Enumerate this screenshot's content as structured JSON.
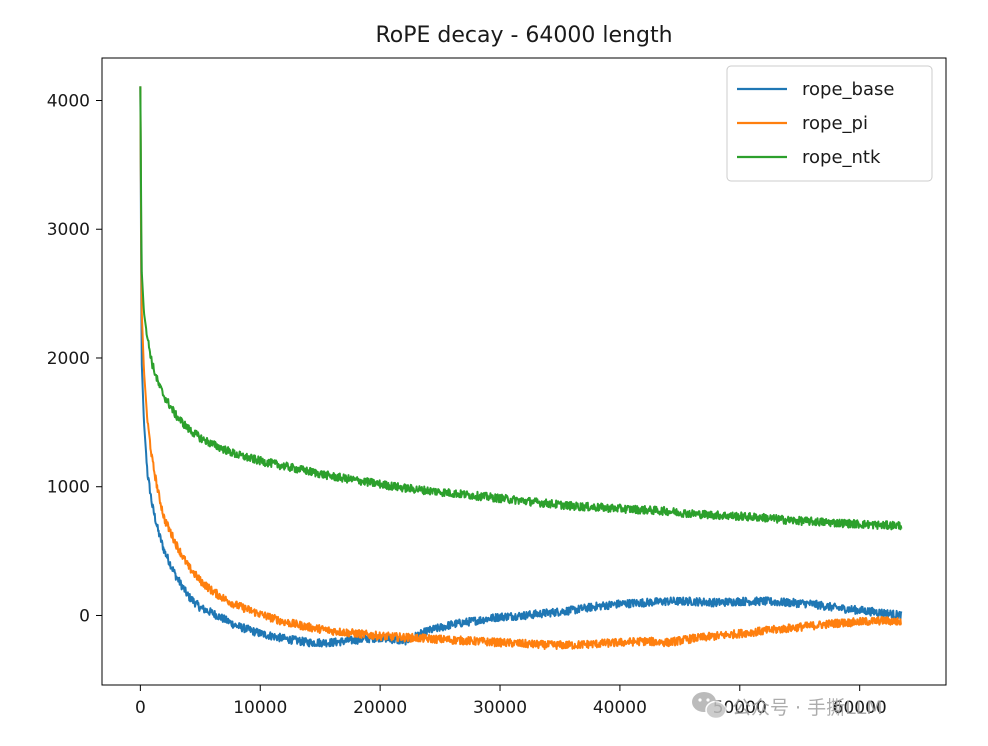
{
  "chart_data": {
    "type": "line",
    "title": "RoPE decay - 64000 length",
    "xlabel": "",
    "ylabel": "",
    "xlim": [
      -3200,
      67200
    ],
    "ylim": [
      -540,
      4330
    ],
    "x_ticks": [
      0,
      10000,
      20000,
      30000,
      40000,
      50000,
      60000
    ],
    "x_tick_labels": [
      "0",
      "10000",
      "20000",
      "30000",
      "40000",
      "50000",
      "60000"
    ],
    "y_ticks": [
      0,
      1000,
      2000,
      3000,
      4000
    ],
    "y_tick_labels": [
      "0",
      "1000",
      "2000",
      "3000",
      "4000"
    ],
    "grid": false,
    "legend": "top-right",
    "series": [
      {
        "name": "rope_base",
        "color": "#1f77b4",
        "x": [
          0,
          100,
          300,
          600,
          1000,
          1500,
          2000,
          3000,
          4000,
          5000,
          6000,
          7000,
          8000,
          10000,
          12000,
          14000,
          16000,
          18000,
          20000,
          22000,
          24000,
          26000,
          28000,
          30000,
          32000,
          34000,
          36000,
          38000,
          40000,
          42000,
          44000,
          46000,
          48000,
          50000,
          52000,
          54000,
          56000,
          58000,
          60000,
          62000,
          63500
        ],
        "y": [
          4110,
          2000,
          1500,
          1100,
          850,
          650,
          500,
          300,
          150,
          60,
          20,
          -30,
          -80,
          -140,
          -180,
          -210,
          -210,
          -190,
          -170,
          -200,
          -120,
          -70,
          -40,
          -10,
          0,
          20,
          40,
          70,
          90,
          100,
          110,
          110,
          100,
          110,
          110,
          100,
          90,
          60,
          40,
          20,
          0
        ]
      },
      {
        "name": "rope_pi",
        "color": "#ff7f0e",
        "x": [
          0,
          100,
          300,
          600,
          1000,
          1500,
          2000,
          3000,
          4000,
          5000,
          6000,
          7000,
          8000,
          10000,
          12000,
          14000,
          16000,
          18000,
          20000,
          22000,
          24000,
          26000,
          28000,
          30000,
          32000,
          34000,
          36000,
          38000,
          40000,
          42000,
          44000,
          46000,
          48000,
          50000,
          52000,
          54000,
          56000,
          58000,
          60000,
          62000,
          63500
        ],
        "y": [
          4110,
          2400,
          1900,
          1500,
          1200,
          950,
          750,
          550,
          380,
          270,
          190,
          130,
          80,
          10,
          -50,
          -90,
          -120,
          -140,
          -160,
          -170,
          -180,
          -190,
          -200,
          -210,
          -220,
          -230,
          -230,
          -220,
          -210,
          -200,
          -210,
          -180,
          -160,
          -140,
          -120,
          -100,
          -80,
          -60,
          -50,
          -40,
          -50
        ]
      },
      {
        "name": "rope_ntk",
        "color": "#2ca02c",
        "x": [
          0,
          100,
          300,
          600,
          1000,
          1500,
          2000,
          3000,
          4000,
          5000,
          6000,
          7000,
          8000,
          10000,
          12000,
          14000,
          16000,
          18000,
          20000,
          22000,
          24000,
          26000,
          28000,
          30000,
          32000,
          34000,
          36000,
          38000,
          40000,
          42000,
          44000,
          46000,
          48000,
          50000,
          52000,
          54000,
          56000,
          58000,
          60000,
          62000,
          63500
        ],
        "y": [
          4110,
          2700,
          2350,
          2150,
          1950,
          1800,
          1700,
          1550,
          1450,
          1380,
          1330,
          1290,
          1250,
          1200,
          1160,
          1120,
          1080,
          1050,
          1020,
          990,
          970,
          950,
          930,
          910,
          890,
          870,
          850,
          840,
          830,
          820,
          810,
          790,
          780,
          770,
          760,
          740,
          730,
          720,
          710,
          700,
          700
        ]
      }
    ]
  },
  "watermark": {
    "icon": "wechat-icon",
    "text": "公众号 · 手撕LLM"
  }
}
